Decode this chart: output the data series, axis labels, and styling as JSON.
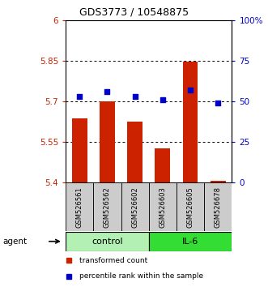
{
  "title": "GDS3773 / 10548875",
  "samples": [
    "GSM526561",
    "GSM526562",
    "GSM526602",
    "GSM526603",
    "GSM526605",
    "GSM526678"
  ],
  "bar_values": [
    5.635,
    5.7,
    5.625,
    5.525,
    5.845,
    5.405
  ],
  "percentile_values": [
    53,
    56,
    53,
    51,
    57,
    49
  ],
  "ylim": [
    5.4,
    6.0
  ],
  "yticks": [
    5.4,
    5.55,
    5.7,
    5.85,
    6.0
  ],
  "ytick_labels": [
    "5.4",
    "5.55",
    "5.7",
    "5.85",
    "6"
  ],
  "y2lim": [
    0,
    100
  ],
  "y2ticks": [
    0,
    25,
    50,
    75,
    100
  ],
  "y2tick_labels": [
    "0",
    "25",
    "50",
    "75",
    "100%"
  ],
  "groups": [
    {
      "label": "control",
      "indices": [
        0,
        1,
        2
      ],
      "color": "#b3f0b3"
    },
    {
      "label": "IL-6",
      "indices": [
        3,
        4,
        5
      ],
      "color": "#33dd33"
    }
  ],
  "bar_color": "#cc2200",
  "percentile_color": "#0000cc",
  "bar_width": 0.55,
  "agent_label": "agent",
  "legend_items": [
    {
      "label": "transformed count",
      "color": "#cc2200"
    },
    {
      "label": "percentile rank within the sample",
      "color": "#0000cc"
    }
  ]
}
